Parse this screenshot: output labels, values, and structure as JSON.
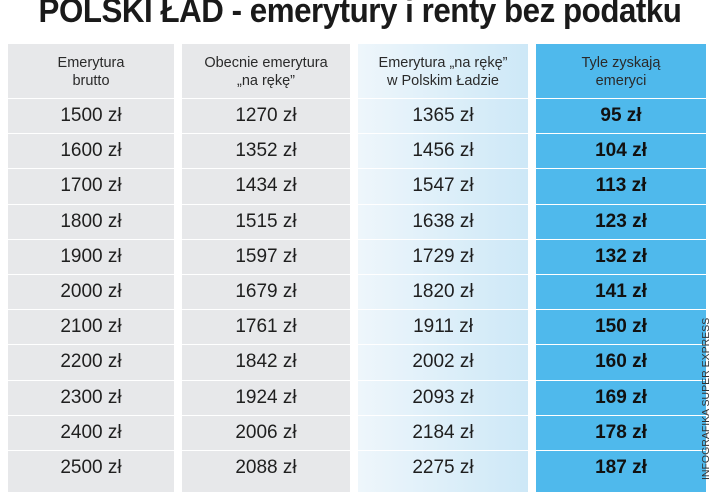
{
  "title": "POLSKI ŁAD - emerytury i renty bez podatku",
  "credit": "INFOGRAFIKA SUPER EXPRESS",
  "columns": [
    {
      "header": "Emerytura\nbrutto",
      "values": [
        "1500 zł",
        "1600 zł",
        "1700 zł",
        "1800 zł",
        "1900 zł",
        "2000 zł",
        "2100 zł",
        "2200 zł",
        "2300 zł",
        "2400 zł",
        "2500 zł"
      ]
    },
    {
      "header": "Obecnie emerytura\n„na rękę”",
      "values": [
        "1270 zł",
        "1352 zł",
        "1434 zł",
        "1515 zł",
        "1597 zł",
        "1679 zł",
        "1761 zł",
        "1842 zł",
        "1924 zł",
        "2006 zł",
        "2088 zł"
      ]
    },
    {
      "header": "Emerytura „na rękę”\nw Polskim Ładzie",
      "values": [
        "1365 zł",
        "1456 zł",
        "1547 zł",
        "1638 zł",
        "1729 zł",
        "1820 zł",
        "1911 zł",
        "2002 zł",
        "2093 zł",
        "2184 zł",
        "2275 zł"
      ]
    },
    {
      "header": "Tyle zyskają\nemeryci",
      "values": [
        "95 zł",
        "104 zł",
        "113 zł",
        "123 zł",
        "132 zł",
        "141 zł",
        "150 zł",
        "160 zł",
        "169 zł",
        "178 zł",
        "187 zł"
      ]
    }
  ],
  "colors": {
    "gray_column": "#e7e8ea",
    "light_blue_column": "#cde8f7",
    "blue_column": "#4fb9ec"
  }
}
